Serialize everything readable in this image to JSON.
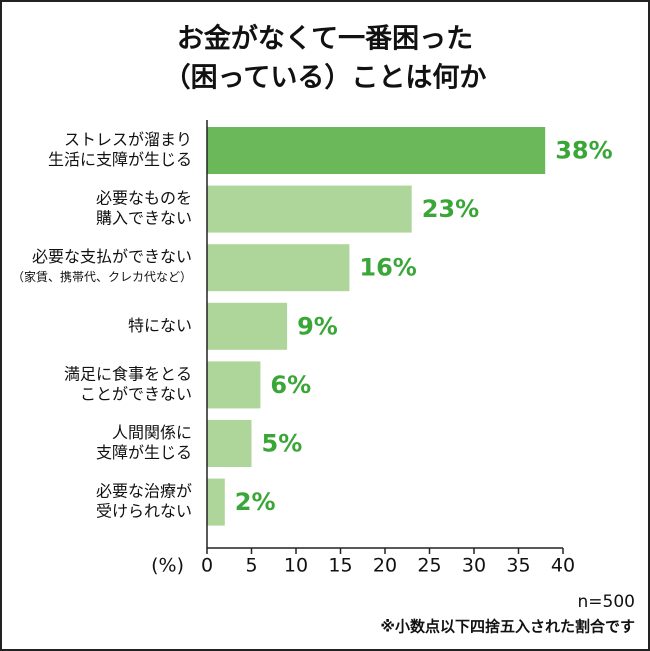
{
  "chart_data": {
    "type": "bar",
    "orientation": "horizontal",
    "title": [
      "お金がなくて一番困った",
      "（困っている）ことは何か"
    ],
    "categories": [
      [
        "ストレスが溜まり",
        "生活に支障が生じる"
      ],
      [
        "必要なものを",
        "購入できない"
      ],
      [
        "必要な支払ができない",
        "（家賃、携帯代、クレカ代など）"
      ],
      [
        "特にない"
      ],
      [
        "満足に食事をとる",
        "ことができない"
      ],
      [
        "人間関係に",
        "支障が生じる"
      ],
      [
        "必要な治療が",
        "受けられない"
      ]
    ],
    "values": [
      38,
      23,
      16,
      9,
      6,
      5,
      2
    ],
    "value_labels": [
      "38%",
      "23%",
      "16%",
      "9%",
      "6%",
      "5%",
      "2%"
    ],
    "colors": [
      "#6ab85a",
      "#afd69a",
      "#afd69a",
      "#afd69a",
      "#afd69a",
      "#afd69a",
      "#afd69a"
    ],
    "label_color": "#3aa637",
    "xlabel": "(%)",
    "xlim": [
      0,
      40
    ],
    "xticks": [
      0,
      5,
      10,
      15,
      20,
      25,
      30,
      35,
      40
    ],
    "notes": [
      "n=500",
      "※小数点以下四捨五入された割合です"
    ]
  }
}
